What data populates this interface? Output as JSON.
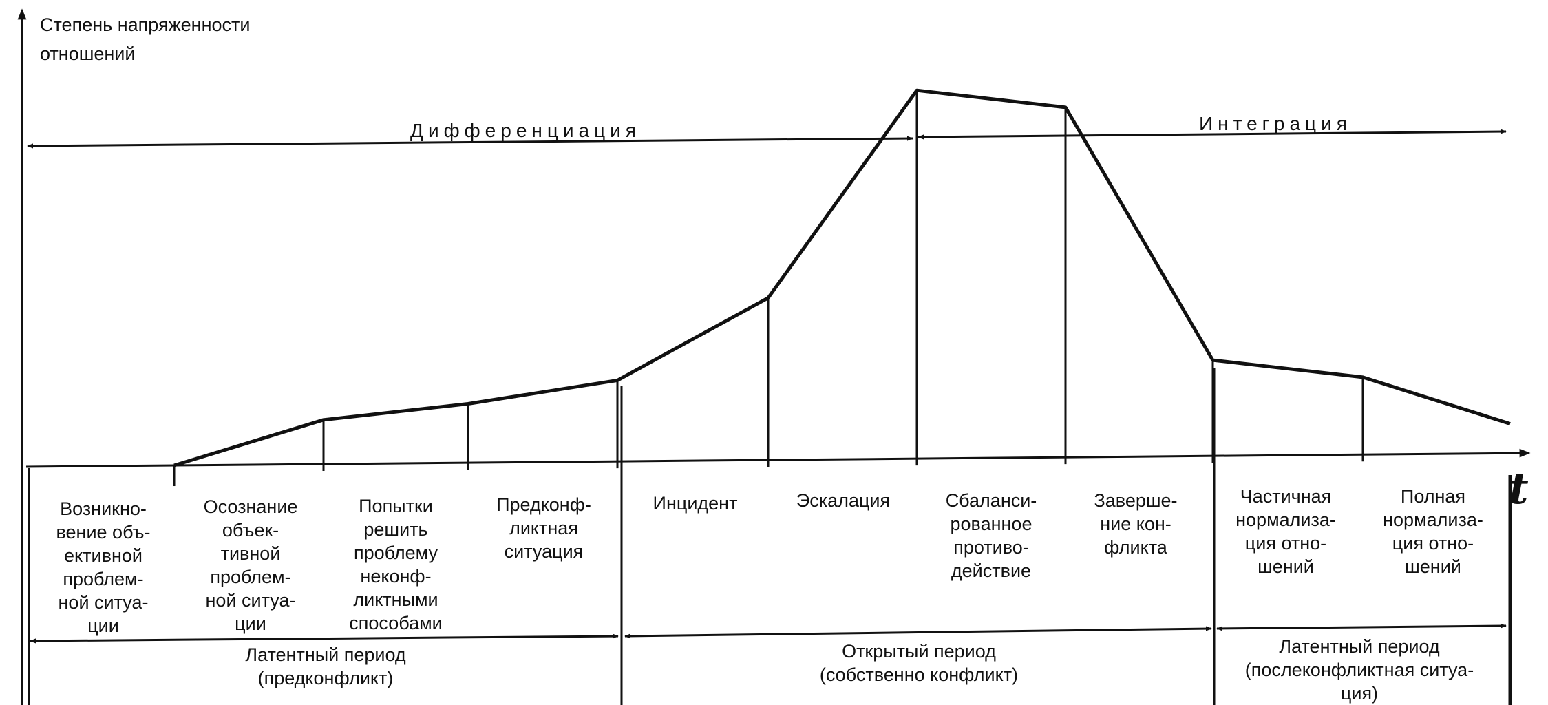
{
  "y_axis_label": [
    "Степень напряженности",
    "отношений"
  ],
  "x_axis_label": "t",
  "top_spans": [
    {
      "label": "Дифференциация"
    },
    {
      "label": "Интеграция"
    }
  ],
  "stages": [
    {
      "lines": [
        "Возникно-",
        "вение объ-",
        "ективной",
        "проблем-",
        "ной ситуа-",
        "ции"
      ]
    },
    {
      "lines": [
        "Осознание",
        "объек-",
        "тивной",
        "проблем-",
        "ной ситуа-",
        "ции"
      ]
    },
    {
      "lines": [
        "Попытки",
        "решить",
        "проблему",
        "неконф-",
        "ликтными",
        "способами"
      ]
    },
    {
      "lines": [
        "Предконф-",
        "ликтная",
        "ситуация"
      ]
    },
    {
      "lines": [
        "Инцидент"
      ]
    },
    {
      "lines": [
        "Эскалация"
      ]
    },
    {
      "lines": [
        "Сбаланси-",
        "рованное",
        "противо-",
        "действие"
      ]
    },
    {
      "lines": [
        "Заверше-",
        "ние кон-",
        "фликта"
      ]
    },
    {
      "lines": [
        "Частичная",
        "нормализа-",
        "ция отно-",
        "шений"
      ]
    },
    {
      "lines": [
        "Полная",
        "нормализа-",
        "ция отно-",
        "шений"
      ]
    }
  ],
  "periods": [
    {
      "lines": [
        "Латентный период",
        "(предконфликт)"
      ]
    },
    {
      "lines": [
        "Открытый период",
        "(собственно конфликт)"
      ]
    },
    {
      "lines": [
        "Латентный период",
        "(послеконфликтная ситуа-",
        "ция)"
      ]
    }
  ],
  "chart_data": {
    "type": "line",
    "series": [
      {
        "values": [
          0,
          0.12,
          0.16,
          0.22,
          0.44,
          1.0,
          0.95,
          0.26,
          0.21,
          0.08
        ]
      }
    ]
  }
}
